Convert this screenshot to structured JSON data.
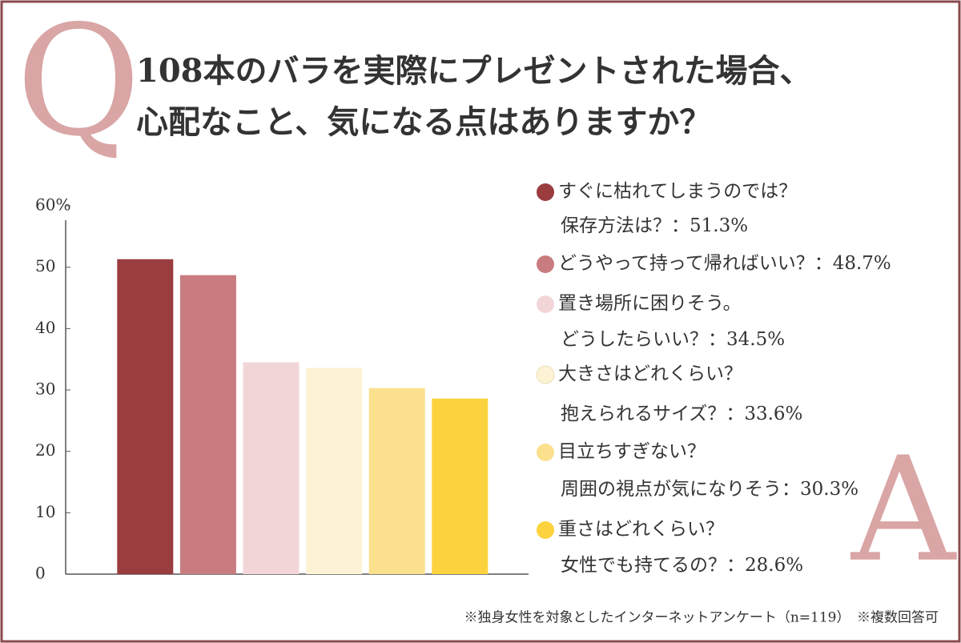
{
  "chart_data": {
    "type": "bar",
    "title_mark": "Q",
    "title": [
      "108本のバラを実際にプレゼントされた場合、",
      "心配なこと、気になる点はありますか？"
    ],
    "answer_mark": "A",
    "categories": [
      [
        "すぐに枯れてしまうのでは？",
        "保存方法は？"
      ],
      [
        "どうやって持って帰ればいい？"
      ],
      [
        "置き場所に困りそう。",
        "どうしたらいい？"
      ],
      [
        "大きさはどれくらい？",
        "抱えられるサイズ？"
      ],
      [
        "目立ちすぎない？",
        "周囲の視点が気になりそう"
      ],
      [
        "重さはどれくらい？",
        "女性でも持てるの？"
      ]
    ],
    "values": [
      51.3,
      48.7,
      34.5,
      33.6,
      30.3,
      28.6
    ],
    "value_labels": [
      "：51.3%",
      "：48.7%",
      "：34.5%",
      "：33.6%",
      "：30.3%",
      "：28.6%"
    ],
    "colors": [
      "#9b3c3f",
      "#c97c7f",
      "#f2d6d7",
      "#fdf3d4",
      "#fbe08e",
      "#fcd33f"
    ],
    "ylim": [
      0,
      60
    ],
    "yticks": [
      0,
      10,
      20,
      30,
      40,
      50,
      {
        "value": 60,
        "label": "60%"
      }
    ],
    "grid": false,
    "footnote": "※独身女性を対象としたインターネットアンケート（n=119）　※複数回答可"
  }
}
